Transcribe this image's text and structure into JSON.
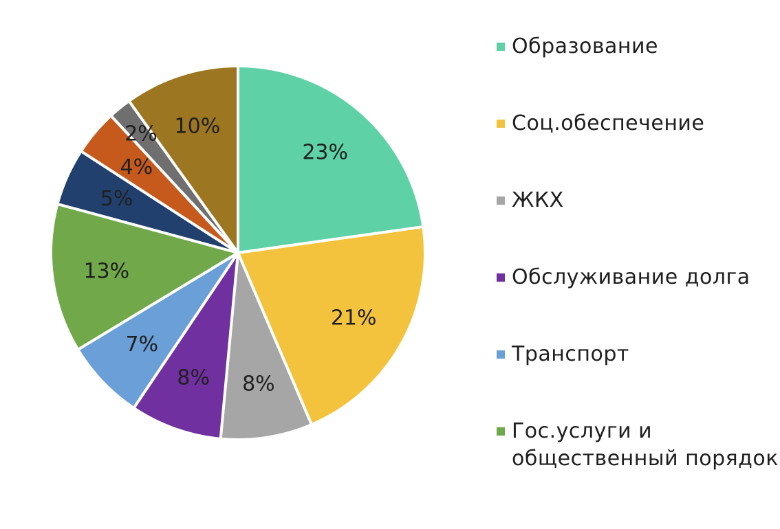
{
  "chart_data": {
    "type": "pie",
    "title": "",
    "start_angle_deg": 0,
    "direction": "clockwise",
    "slices": [
      {
        "name": "Образование",
        "value": 23,
        "label": "23%",
        "color": "#5ed2a6",
        "in_legend": true
      },
      {
        "name": "Соц.обеспечение",
        "value": 21,
        "label": "21%",
        "color": "#f4c33e",
        "in_legend": true
      },
      {
        "name": "ЖКХ",
        "value": 8,
        "label": "8%",
        "color": "#a6a6a6",
        "in_legend": true
      },
      {
        "name": "Обслуживание долга",
        "value": 8,
        "label": "8%",
        "color": "#7030a0",
        "in_legend": true
      },
      {
        "name": "Транспорт",
        "value": 7,
        "label": "7%",
        "color": "#6a9fd8",
        "in_legend": true
      },
      {
        "name": "Гос.услуги и общественный порядок",
        "value": 13,
        "label": "13%",
        "color": "#70a84a",
        "in_legend": true
      },
      {
        "name": "",
        "value": 5,
        "label": "5%",
        "color": "#21406e",
        "in_legend": false
      },
      {
        "name": "",
        "value": 4,
        "label": "4%",
        "color": "#c55a1c",
        "in_legend": false
      },
      {
        "name": "",
        "value": 2,
        "label": "2%",
        "color": "#6f6f6f",
        "in_legend": false
      },
      {
        "name": "",
        "value": 10,
        "label": "10%",
        "color": "#9c7620",
        "in_legend": false
      }
    ],
    "legend_position": "right",
    "data_labels": "percent"
  }
}
